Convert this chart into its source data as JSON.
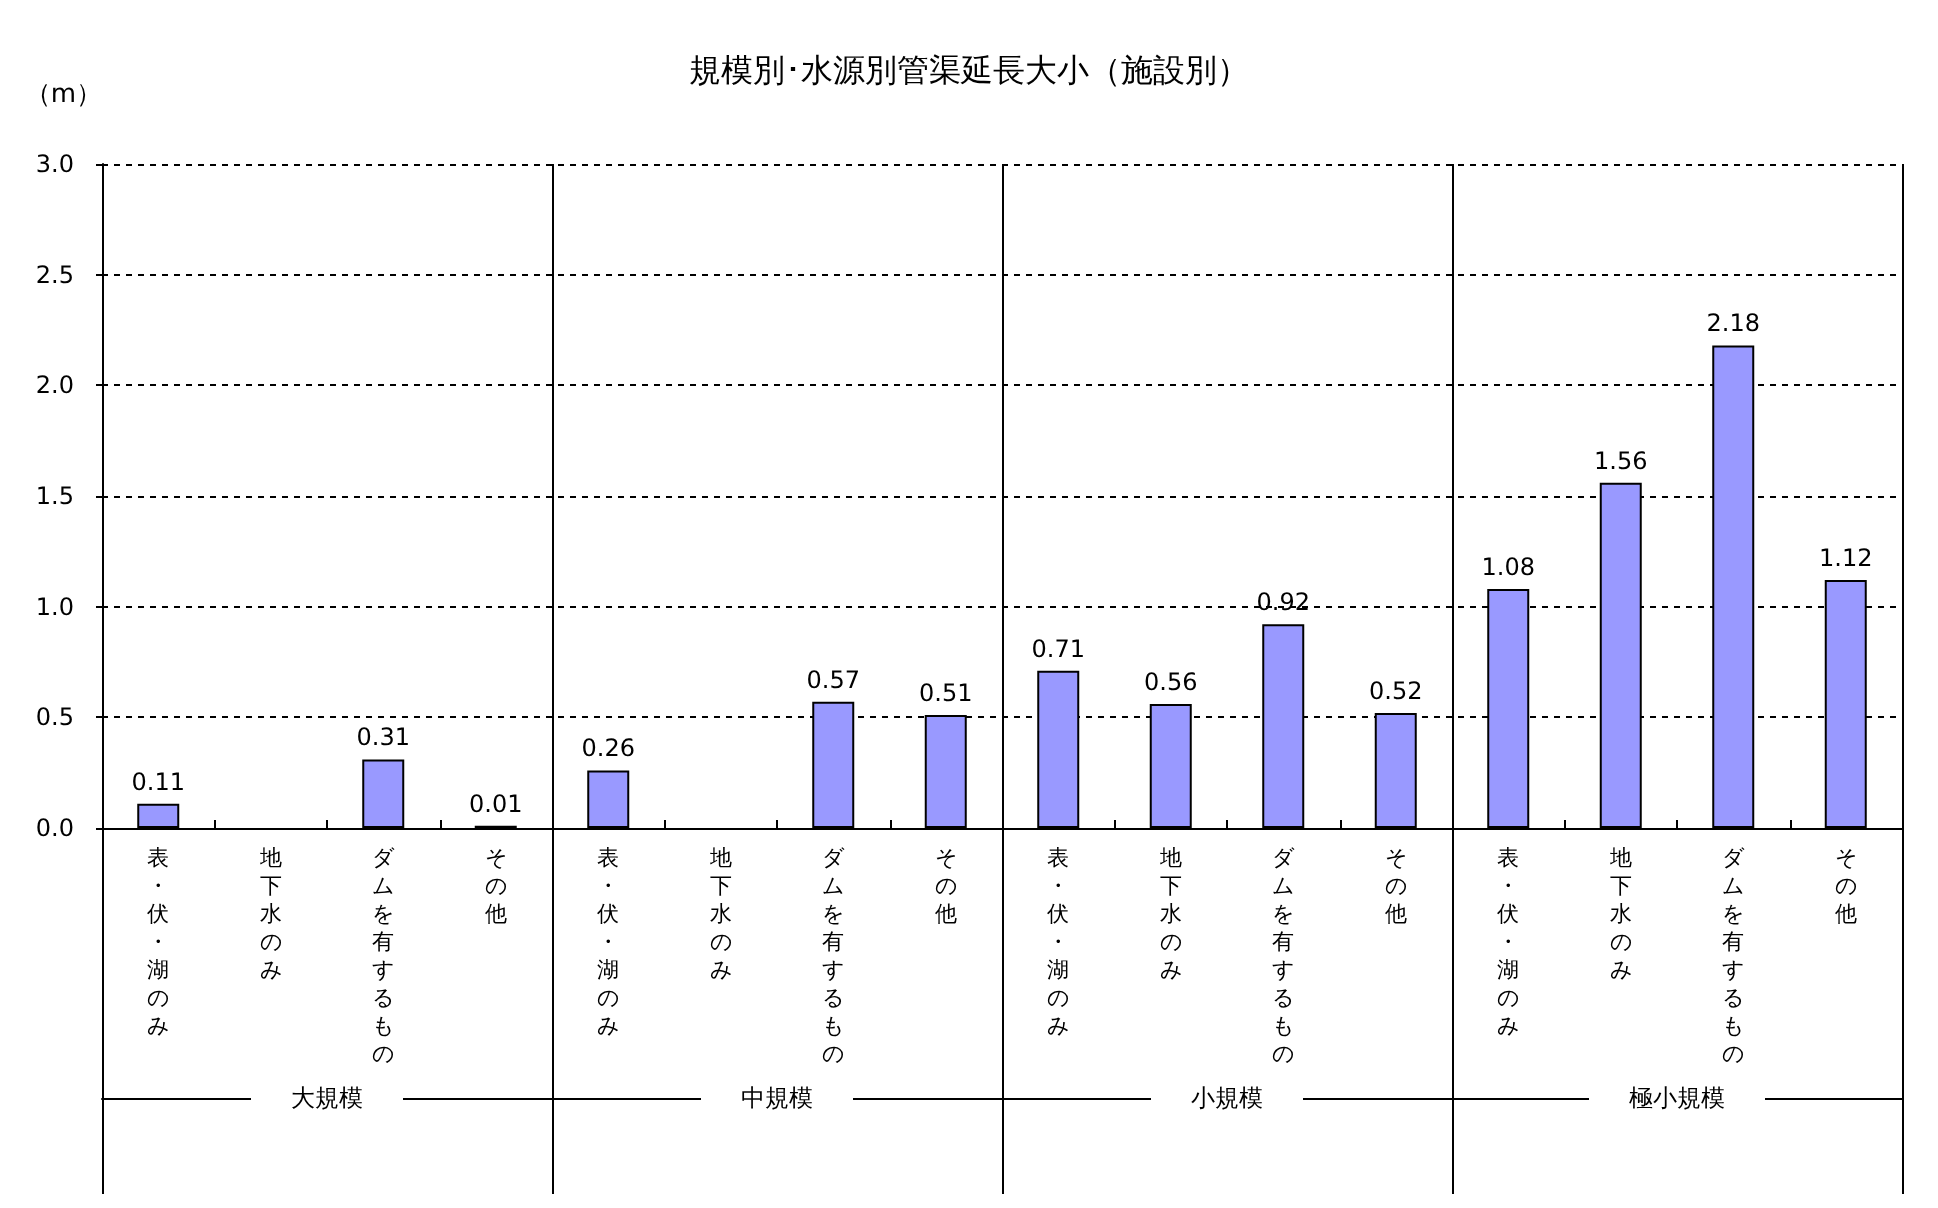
{
  "chart_data": {
    "type": "bar",
    "title": "規模別･水源別管渠延長大小（施設別）",
    "ylabel": "（m）",
    "categories": [
      "表・伏・湖のみ",
      "地下水のみ",
      "ダムを有するもの",
      "その他",
      "表・伏・湖のみ",
      "地下水のみ",
      "ダムを有するもの",
      "その他",
      "表・伏・湖のみ",
      "地下水のみ",
      "ダムを有するもの",
      "その他",
      "表・伏・湖のみ",
      "地下水のみ",
      "ダムを有するもの",
      "その他"
    ],
    "values": [
      0.11,
      null,
      0.31,
      0.01,
      0.26,
      null,
      0.57,
      0.51,
      0.71,
      0.56,
      0.92,
      0.52,
      1.08,
      1.56,
      2.18,
      1.12
    ],
    "color": "#9999ff",
    "ylim": [
      0,
      3
    ],
    "yticks": [
      {
        "value": 0,
        "label": "0.0"
      },
      0.5,
      {
        "value": 1,
        "label": "1.0"
      },
      1.5,
      {
        "value": 2,
        "label": "2.0"
      },
      2.5,
      {
        "value": 3,
        "label": "3.0"
      }
    ],
    "grid": "y",
    "data_labels": true,
    "annotations": [
      "大規模",
      "中規模",
      "小規模",
      "極小規模"
    ]
  }
}
